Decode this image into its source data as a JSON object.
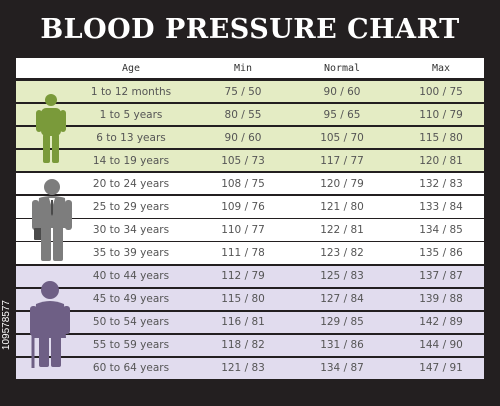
{
  "colors": {
    "background": "#231f20",
    "child_row": "#e4ecc4",
    "adult_row": "#ffffff",
    "senior_row": "#e1dcee",
    "child_figure": "#7a9a3a",
    "adult_figure": "#7d7d7d",
    "senior_figure": "#6e5f85"
  },
  "chart_data": {
    "type": "table",
    "title": "BLOOD PRESSURE CHART",
    "columns": [
      "Age",
      "Min",
      "Normal",
      "Max"
    ],
    "rows": [
      {
        "group": "child",
        "age": "1 to 12 months",
        "min": "75 / 50",
        "normal": "90 / 60",
        "max": "100 / 75"
      },
      {
        "group": "child",
        "age": "1 to 5 years",
        "min": "80 / 55",
        "normal": "95 / 65",
        "max": "110 / 79"
      },
      {
        "group": "child",
        "age": "6 to 13 years",
        "min": "90 / 60",
        "normal": "105 / 70",
        "max": "115 / 80"
      },
      {
        "group": "child",
        "age": "14 to 19 years",
        "min": "105 / 73",
        "normal": "117 / 77",
        "max": "120 / 81"
      },
      {
        "group": "adult",
        "age": "20 to 24 years",
        "min": "108 / 75",
        "normal": "120 / 79",
        "max": "132 / 83"
      },
      {
        "group": "adult",
        "age": "25 to 29 years",
        "min": "109 / 76",
        "normal": "121 / 80",
        "max": "133 / 84"
      },
      {
        "group": "adult",
        "age": "30 to 34 years",
        "min": "110 / 77",
        "normal": "122 / 81",
        "max": "134 / 85"
      },
      {
        "group": "adult",
        "age": "35 to 39 years",
        "min": "111 / 78",
        "normal": "123 / 82",
        "max": "135 / 86"
      },
      {
        "group": "senior",
        "age": "40 to 44 years",
        "min": "112 / 79",
        "normal": "125 / 83",
        "max": "137 / 87"
      },
      {
        "group": "senior",
        "age": "45 to 49 years",
        "min": "115 / 80",
        "normal": "127 / 84",
        "max": "139 / 88"
      },
      {
        "group": "senior",
        "age": "50 to 54 years",
        "min": "116 / 81",
        "normal": "129 / 85",
        "max": "142 / 89"
      },
      {
        "group": "senior",
        "age": "55 to 59 years",
        "min": "118 / 82",
        "normal": "131 / 86",
        "max": "144 / 90"
      },
      {
        "group": "senior",
        "age": "60 to 64 years",
        "min": "121 / 83",
        "normal": "134 / 87",
        "max": "147 / 91"
      }
    ]
  },
  "figures": [
    {
      "name": "child-figure-icon",
      "icon": "child-silhouette"
    },
    {
      "name": "adult-figure-icon",
      "icon": "businessman-silhouette"
    },
    {
      "name": "senior-figure-icon",
      "icon": "elderly-with-cane-silhouette"
    }
  ],
  "watermark": "109578577"
}
